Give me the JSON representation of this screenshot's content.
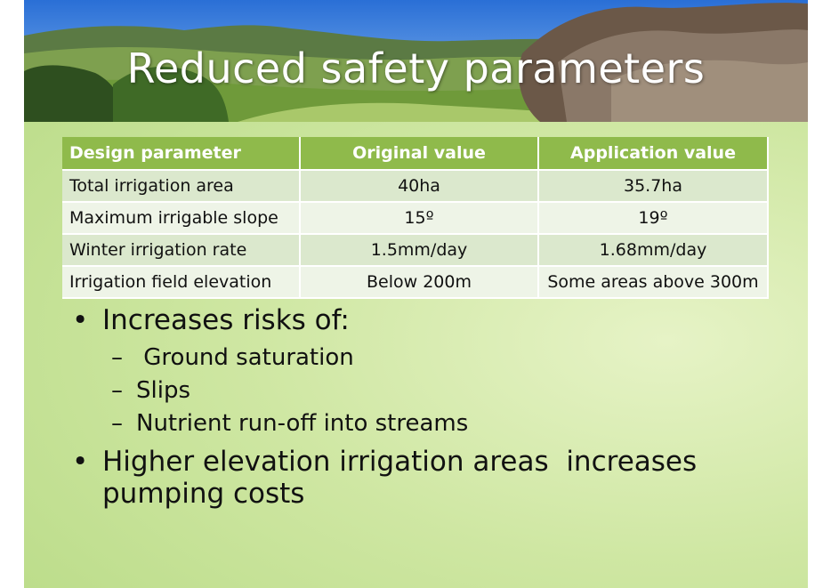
{
  "slide": {
    "title": "Reduced safety parameters"
  },
  "table": {
    "headers": [
      "Design parameter",
      "Original value",
      "Application value"
    ],
    "rows": [
      [
        "Total irrigation area",
        "40ha",
        "35.7ha"
      ],
      [
        "Maximum irrigable slope",
        "15º",
        "19º"
      ],
      [
        "Winter irrigation rate",
        "1.5mm/day",
        "1.68mm/day"
      ],
      [
        "Irrigation field elevation",
        "Below 200m",
        "Some areas above 300m"
      ]
    ]
  },
  "bullets": [
    {
      "text": "Increases risks of:",
      "subitems": [
        " Ground saturation",
        "Slips",
        "Nutrient run-off into streams"
      ]
    },
    {
      "text": "Higher elevation irrigation areas  increases pumping costs",
      "subitems": []
    }
  ],
  "colors": {
    "header_bg": "#8fba4b",
    "row_dark": "#dbe8cd",
    "row_light": "#eef4e7",
    "slide_bg": "#cfe7a3"
  }
}
